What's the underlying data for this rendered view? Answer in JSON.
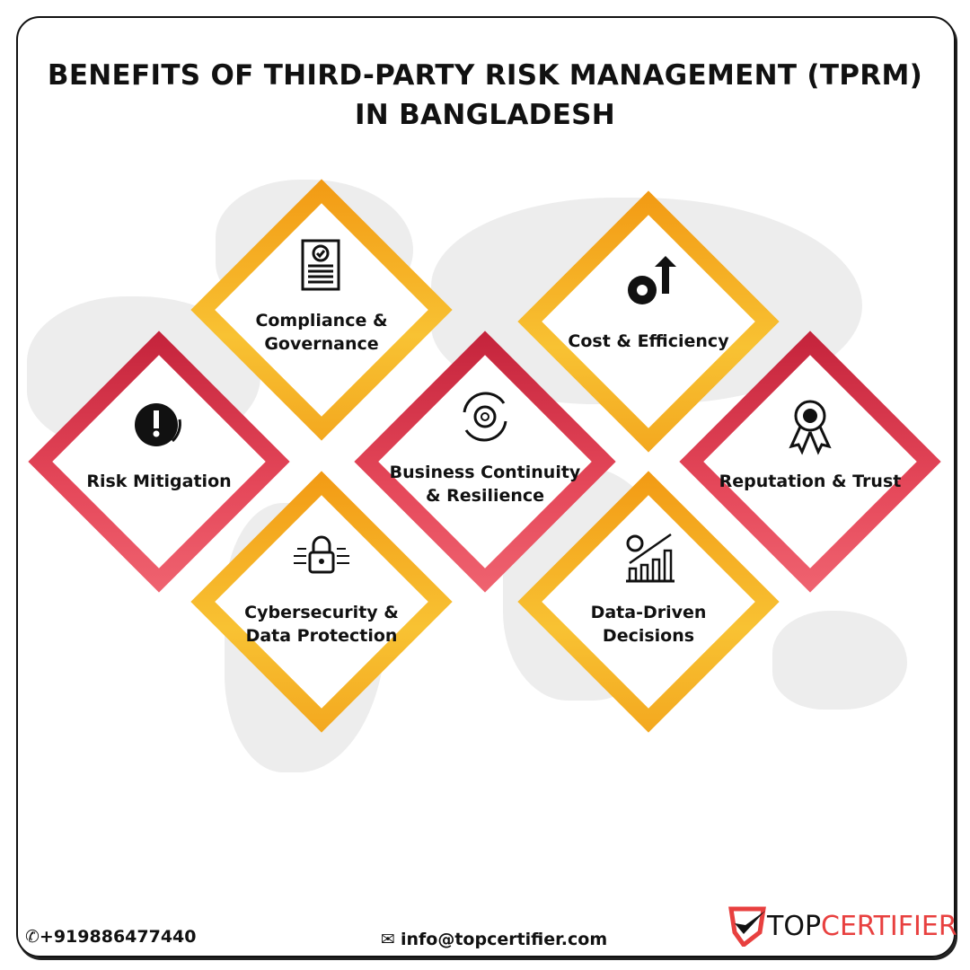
{
  "title_line1": "BENEFITS OF THIRD-PARTY RISK MANAGEMENT (TPRM)",
  "title_line2": "IN BANGLADESH",
  "items": [
    {
      "label1": "Compliance &",
      "label2": "Governance",
      "icon": "document-check-icon",
      "color": "orange"
    },
    {
      "label1": "Cost & Efficiency",
      "label2": "",
      "icon": "gear-arrow-up-icon",
      "color": "orange"
    },
    {
      "label1": "Risk Mitigation",
      "label2": "",
      "icon": "gear-warning-icon",
      "color": "red"
    },
    {
      "label1": "Business Continuity",
      "label2": "& Resilience",
      "icon": "gear-cycle-icon",
      "color": "red"
    },
    {
      "label1": "Reputation & Trust",
      "label2": "",
      "icon": "award-ribbon-icon",
      "color": "red"
    },
    {
      "label1": "Cybersecurity &",
      "label2": "Data Protection",
      "icon": "circuit-lock-icon",
      "color": "orange"
    },
    {
      "label1": "Data-Driven",
      "label2": "Decisions",
      "icon": "chart-gear-icon",
      "color": "orange"
    }
  ],
  "footer": {
    "phone": "+919886477440",
    "email": "info@topcertifier.com"
  },
  "logo": {
    "part1": "TOP",
    "part2": "CERTIFIER"
  },
  "colors": {
    "orange": "#f39c12",
    "red": "#c4233b",
    "logo_red": "#e8403f"
  }
}
